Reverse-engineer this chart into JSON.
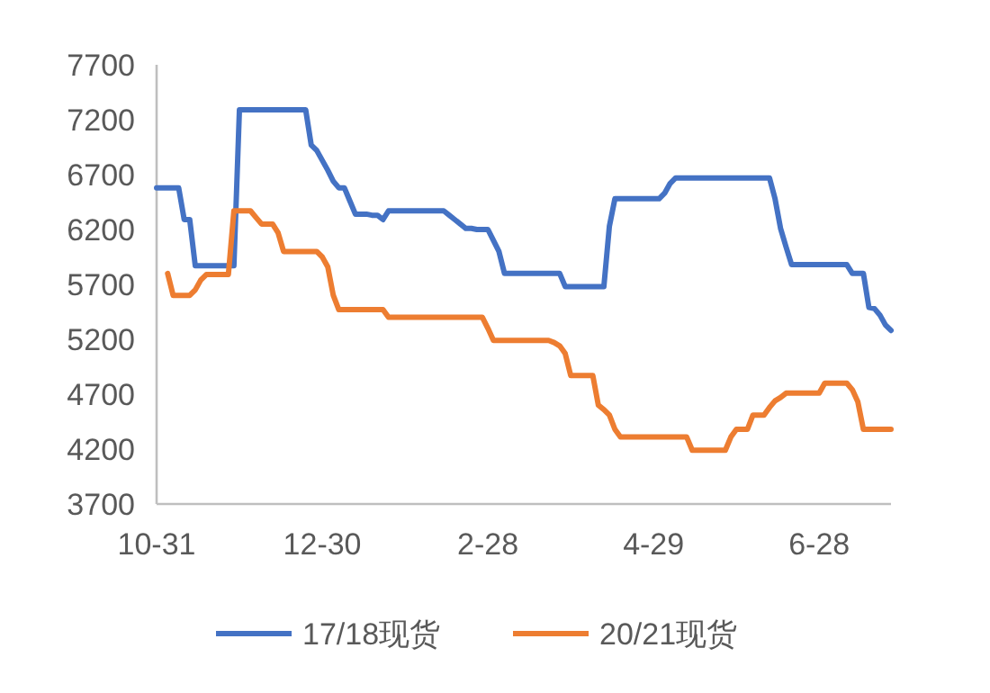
{
  "chart_data": {
    "type": "line",
    "categories": [
      "10-31",
      null,
      null,
      null,
      null,
      null,
      null,
      null,
      null,
      null,
      null,
      null,
      null,
      null,
      null,
      null,
      null,
      null,
      null,
      null,
      null,
      null,
      null,
      null,
      null,
      null,
      null,
      null,
      null,
      null,
      "12-30",
      null,
      null,
      null,
      null,
      null,
      null,
      null,
      null,
      null,
      null,
      null,
      null,
      null,
      null,
      null,
      null,
      null,
      null,
      null,
      null,
      null,
      null,
      null,
      null,
      null,
      null,
      null,
      null,
      null,
      "2-28",
      null,
      null,
      null,
      null,
      null,
      null,
      null,
      null,
      null,
      null,
      null,
      null,
      null,
      null,
      null,
      null,
      null,
      null,
      null,
      null,
      null,
      null,
      null,
      null,
      null,
      null,
      null,
      null,
      null,
      "4-29",
      null,
      null,
      null,
      null,
      null,
      null,
      null,
      null,
      null,
      null,
      null,
      null,
      null,
      null,
      null,
      null,
      null,
      null,
      null,
      null,
      null,
      null,
      null,
      null,
      null,
      null,
      null,
      null,
      null,
      "6-28",
      null,
      null,
      null,
      null,
      null,
      null,
      null,
      null,
      null,
      null,
      null,
      null,
      null
    ],
    "ylim": [
      3700,
      7700
    ],
    "yticks": [
      3700,
      4200,
      4700,
      5200,
      5700,
      6200,
      6700,
      7200,
      7700
    ],
    "grid": false,
    "legend": "bottom",
    "marker": "none",
    "line_style": "solid",
    "series": [
      {
        "name": "17/18现货",
        "color": "#4472c4",
        "values": [
          6580,
          6580,
          6580,
          6580,
          6580,
          6290,
          6290,
          5870,
          5870,
          5870,
          5870,
          5870,
          5870,
          5870,
          5870,
          7290,
          7290,
          7290,
          7290,
          7290,
          7290,
          7290,
          7290,
          7290,
          7290,
          7290,
          7290,
          7290,
          6970,
          6920,
          6830,
          6740,
          6640,
          6580,
          6580,
          6460,
          6340,
          6340,
          6340,
          6330,
          6330,
          6290,
          6370,
          6370,
          6370,
          6370,
          6370,
          6370,
          6370,
          6370,
          6370,
          6370,
          6370,
          6330,
          6290,
          6250,
          6210,
          6210,
          6200,
          6200,
          6200,
          6100,
          6000,
          5800,
          5800,
          5800,
          5800,
          5800,
          5800,
          5800,
          5800,
          5800,
          5800,
          5800,
          5680,
          5680,
          5680,
          5680,
          5680,
          5680,
          5680,
          5680,
          6230,
          6480,
          6480,
          6480,
          6480,
          6480,
          6480,
          6480,
          6480,
          6480,
          6530,
          6620,
          6670,
          6670,
          6670,
          6670,
          6670,
          6670,
          6670,
          6670,
          6670,
          6670,
          6670,
          6670,
          6670,
          6670,
          6670,
          6670,
          6670,
          6670,
          6480,
          6210,
          6040,
          5880,
          5880,
          5880,
          5880,
          5880,
          5880,
          5880,
          5880,
          5880,
          5880,
          5880,
          5800,
          5800,
          5800,
          5490,
          5480,
          5420,
          5330,
          5280
        ]
      },
      {
        "name": "20/21现货",
        "color": "#ed7d31",
        "values": [
          null,
          null,
          5800,
          5600,
          5600,
          5600,
          5600,
          5650,
          5740,
          5790,
          5790,
          5790,
          5790,
          5790,
          6370,
          6370,
          6370,
          6370,
          6310,
          6250,
          6250,
          6250,
          6170,
          6000,
          6000,
          6000,
          6000,
          6000,
          6000,
          6000,
          5950,
          5860,
          5600,
          5470,
          5470,
          5470,
          5470,
          5470,
          5470,
          5470,
          5470,
          5470,
          5400,
          5400,
          5400,
          5400,
          5400,
          5400,
          5400,
          5400,
          5400,
          5400,
          5400,
          5400,
          5400,
          5400,
          5400,
          5400,
          5400,
          5400,
          5300,
          5190,
          5190,
          5190,
          5190,
          5190,
          5190,
          5190,
          5190,
          5190,
          5190,
          5190,
          5170,
          5140,
          5070,
          4870,
          4870,
          4870,
          4870,
          4870,
          4600,
          4560,
          4510,
          4380,
          4310,
          4310,
          4310,
          4310,
          4310,
          4310,
          4310,
          4310,
          4310,
          4310,
          4310,
          4310,
          4310,
          4190,
          4190,
          4190,
          4190,
          4190,
          4190,
          4190,
          4310,
          4380,
          4380,
          4380,
          4510,
          4510,
          4510,
          4580,
          4640,
          4670,
          4710,
          4710,
          4710,
          4710,
          4710,
          4710,
          4710,
          4800,
          4800,
          4800,
          4800,
          4800,
          4740,
          4630,
          4380,
          4380,
          4380,
          4380,
          4380,
          4380
        ]
      }
    ]
  }
}
